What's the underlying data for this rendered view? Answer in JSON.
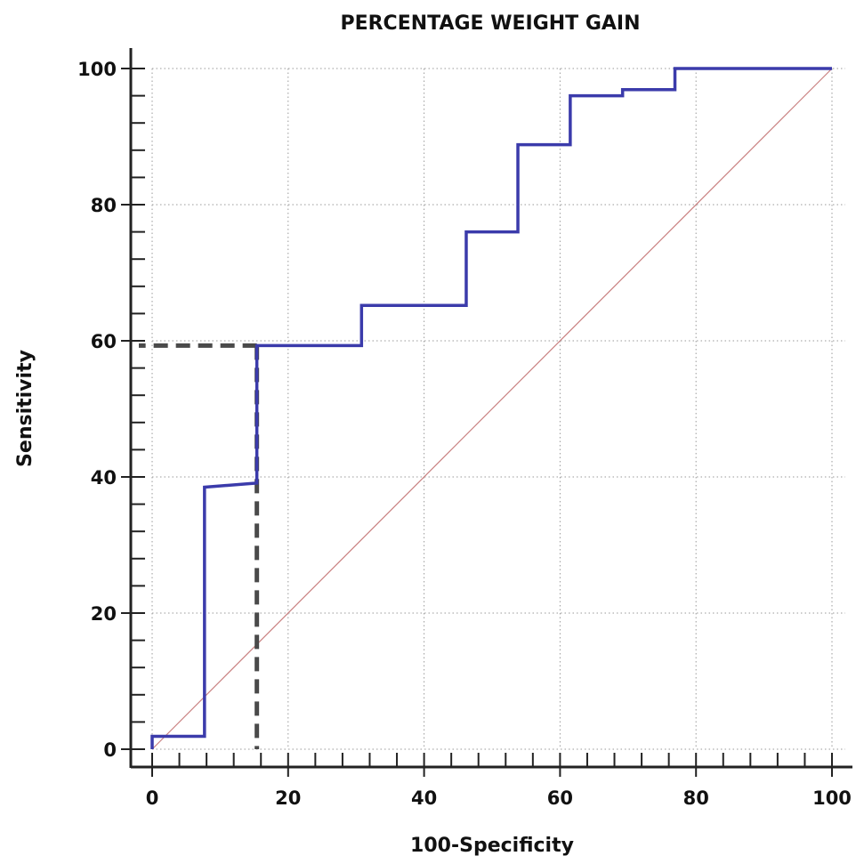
{
  "chart_data": {
    "type": "line",
    "title": "PERCENTAGE WEIGHT GAIN",
    "xlabel": "100-Specificity",
    "ylabel": "Sensitivity",
    "xlim": [
      0,
      100
    ],
    "ylim": [
      0,
      100
    ],
    "x_ticks": [
      0,
      20,
      40,
      60,
      80,
      100
    ],
    "y_ticks": [
      0,
      20,
      40,
      60,
      80,
      100
    ],
    "grid": true,
    "series": [
      {
        "role": "roc-curve",
        "color": "#3b3bab",
        "points": [
          [
            0,
            0
          ],
          [
            0,
            1.9
          ],
          [
            7.7,
            1.9
          ],
          [
            7.7,
            38.5
          ],
          [
            15.4,
            39.1
          ],
          [
            15.4,
            59.3
          ],
          [
            30.8,
            59.3
          ],
          [
            30.8,
            65.2
          ],
          [
            46.2,
            65.2
          ],
          [
            46.2,
            76.0
          ],
          [
            53.8,
            76.0
          ],
          [
            53.8,
            88.8
          ],
          [
            61.5,
            88.8
          ],
          [
            61.5,
            96.0
          ],
          [
            69.2,
            96.0
          ],
          [
            69.2,
            96.9
          ],
          [
            76.9,
            96.9
          ],
          [
            76.9,
            100
          ],
          [
            100,
            100
          ]
        ]
      },
      {
        "role": "reference-diagonal",
        "color": "#c98080",
        "points": [
          [
            0,
            0
          ],
          [
            100,
            100
          ]
        ]
      }
    ],
    "annotations": [
      {
        "type": "optimal-cutoff-marker",
        "x": 15.4,
        "y": 59.3,
        "style": "dashed",
        "color": "#4a4a4a"
      }
    ]
  }
}
